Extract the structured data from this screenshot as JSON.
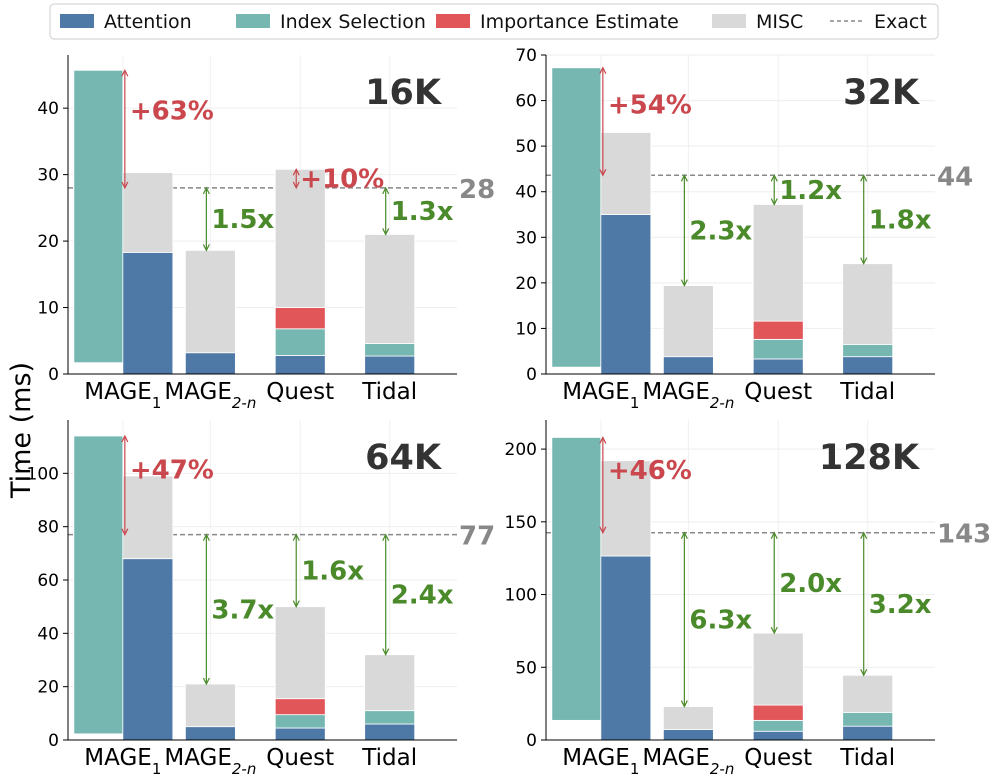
{
  "colors": {
    "attention": "#4e79a7",
    "index": "#76b7b2",
    "importance": "#e15759",
    "misc": "#d9d9d9",
    "exact": "#888888",
    "overhead": "#c9474d",
    "speedup": "#4a8a2a",
    "panel_title": "#333333"
  },
  "legend": [
    {
      "label": "Attention",
      "key": "attention",
      "kind": "box"
    },
    {
      "label": "Index Selection",
      "key": "index",
      "kind": "box"
    },
    {
      "label": "Importance Estimate",
      "key": "importance",
      "kind": "box"
    },
    {
      "label": "MISC",
      "key": "misc",
      "kind": "box"
    },
    {
      "label": "Exact",
      "key": "exact",
      "kind": "line"
    }
  ],
  "ylabel": "Time (ms)",
  "chart_data": [
    {
      "type": "bar",
      "title": "16K",
      "ylim": [
        0,
        48
      ],
      "yticks": [
        0,
        10,
        20,
        30,
        40
      ],
      "categories": [
        "MAGE1",
        "MAGE2-n",
        "Quest",
        "Tidal"
      ],
      "exact": 28,
      "exact_label": "28",
      "mage1_index": {
        "bottom": 1.7,
        "top": 45.7
      },
      "series": [
        {
          "name": "Attention",
          "values": [
            18.3,
            3.2,
            2.8,
            2.7
          ]
        },
        {
          "name": "Index Selection",
          "values": [
            0,
            0,
            4.0,
            1.9
          ]
        },
        {
          "name": "Importance Estimate",
          "values": [
            0,
            0,
            3.2,
            0
          ]
        },
        {
          "name": "MISC",
          "values": [
            12.0,
            15.4,
            20.8,
            16.4
          ]
        }
      ],
      "annotations": [
        {
          "text": "+63%",
          "kind": "overhead",
          "cat": 0,
          "top": 45.7
        },
        {
          "text": "1.5x",
          "kind": "speedup",
          "cat": 1
        },
        {
          "text": "+10%",
          "kind": "overhead",
          "cat": 2
        },
        {
          "text": "1.3x",
          "kind": "speedup",
          "cat": 3
        }
      ]
    },
    {
      "type": "bar",
      "title": "32K",
      "ylim": [
        0,
        70
      ],
      "yticks": [
        0,
        10,
        20,
        30,
        40,
        50,
        60,
        70
      ],
      "categories": [
        "MAGE1",
        "MAGE2-n",
        "Quest",
        "Tidal"
      ],
      "exact": 43.6,
      "exact_label": "44",
      "mage1_index": {
        "bottom": 1.5,
        "top": 67.2
      },
      "series": [
        {
          "name": "Attention",
          "values": [
            35.0,
            3.8,
            3.3,
            3.8
          ]
        },
        {
          "name": "Index Selection",
          "values": [
            0,
            0,
            4.3,
            2.7
          ]
        },
        {
          "name": "Importance Estimate",
          "values": [
            0,
            0,
            4.0,
            0
          ]
        },
        {
          "name": "MISC",
          "values": [
            18.0,
            15.6,
            25.6,
            17.7
          ]
        }
      ],
      "annotations": [
        {
          "text": "+54%",
          "kind": "overhead",
          "cat": 0,
          "top": 67.2
        },
        {
          "text": "2.3x",
          "kind": "speedup",
          "cat": 1
        },
        {
          "text": "1.2x",
          "kind": "speedup",
          "cat": 2
        },
        {
          "text": "1.8x",
          "kind": "speedup",
          "cat": 3
        }
      ]
    },
    {
      "type": "bar",
      "title": "64K",
      "ylim": [
        0,
        120
      ],
      "yticks": [
        0,
        20,
        40,
        60,
        80,
        100
      ],
      "categories": [
        "MAGE1",
        "MAGE2-n",
        "Quest",
        "Tidal"
      ],
      "exact": 77,
      "exact_label": "77",
      "mage1_index": {
        "bottom": 2.3,
        "top": 114
      },
      "series": [
        {
          "name": "Attention",
          "values": [
            68,
            5,
            4.5,
            6
          ]
        },
        {
          "name": "Index Selection",
          "values": [
            0,
            0,
            5,
            5
          ]
        },
        {
          "name": "Importance Estimate",
          "values": [
            0,
            0,
            6,
            0
          ]
        },
        {
          "name": "MISC",
          "values": [
            31,
            16,
            34.5,
            21
          ]
        }
      ],
      "annotations": [
        {
          "text": "+47%",
          "kind": "overhead",
          "cat": 0,
          "top": 114
        },
        {
          "text": "3.7x",
          "kind": "speedup",
          "cat": 1
        },
        {
          "text": "1.6x",
          "kind": "speedup",
          "cat": 2
        },
        {
          "text": "2.4x",
          "kind": "speedup",
          "cat": 3
        }
      ]
    },
    {
      "type": "bar",
      "title": "128K",
      "ylim": [
        0,
        220
      ],
      "yticks": [
        0,
        50,
        100,
        150,
        200
      ],
      "categories": [
        "MAGE1",
        "MAGE2-n",
        "Quest",
        "Tidal"
      ],
      "exact": 142.5,
      "exact_label": "143",
      "mage1_index": {
        "bottom": 13.5,
        "top": 208
      },
      "series": [
        {
          "name": "Attention",
          "values": [
            126.5,
            7.2,
            6,
            9.5
          ]
        },
        {
          "name": "Index Selection",
          "values": [
            0,
            0,
            7.5,
            9.5
          ]
        },
        {
          "name": "Importance Estimate",
          "values": [
            0,
            0,
            10.5,
            0
          ]
        },
        {
          "name": "MISC",
          "values": [
            65.5,
            15.8,
            49.5,
            25.5
          ]
        }
      ],
      "annotations": [
        {
          "text": "+46%",
          "kind": "overhead",
          "cat": 0,
          "top": 208
        },
        {
          "text": "6.3x",
          "kind": "speedup",
          "cat": 1
        },
        {
          "text": "2.0x",
          "kind": "speedup",
          "cat": 2
        },
        {
          "text": "3.2x",
          "kind": "speedup",
          "cat": 3
        }
      ]
    }
  ]
}
